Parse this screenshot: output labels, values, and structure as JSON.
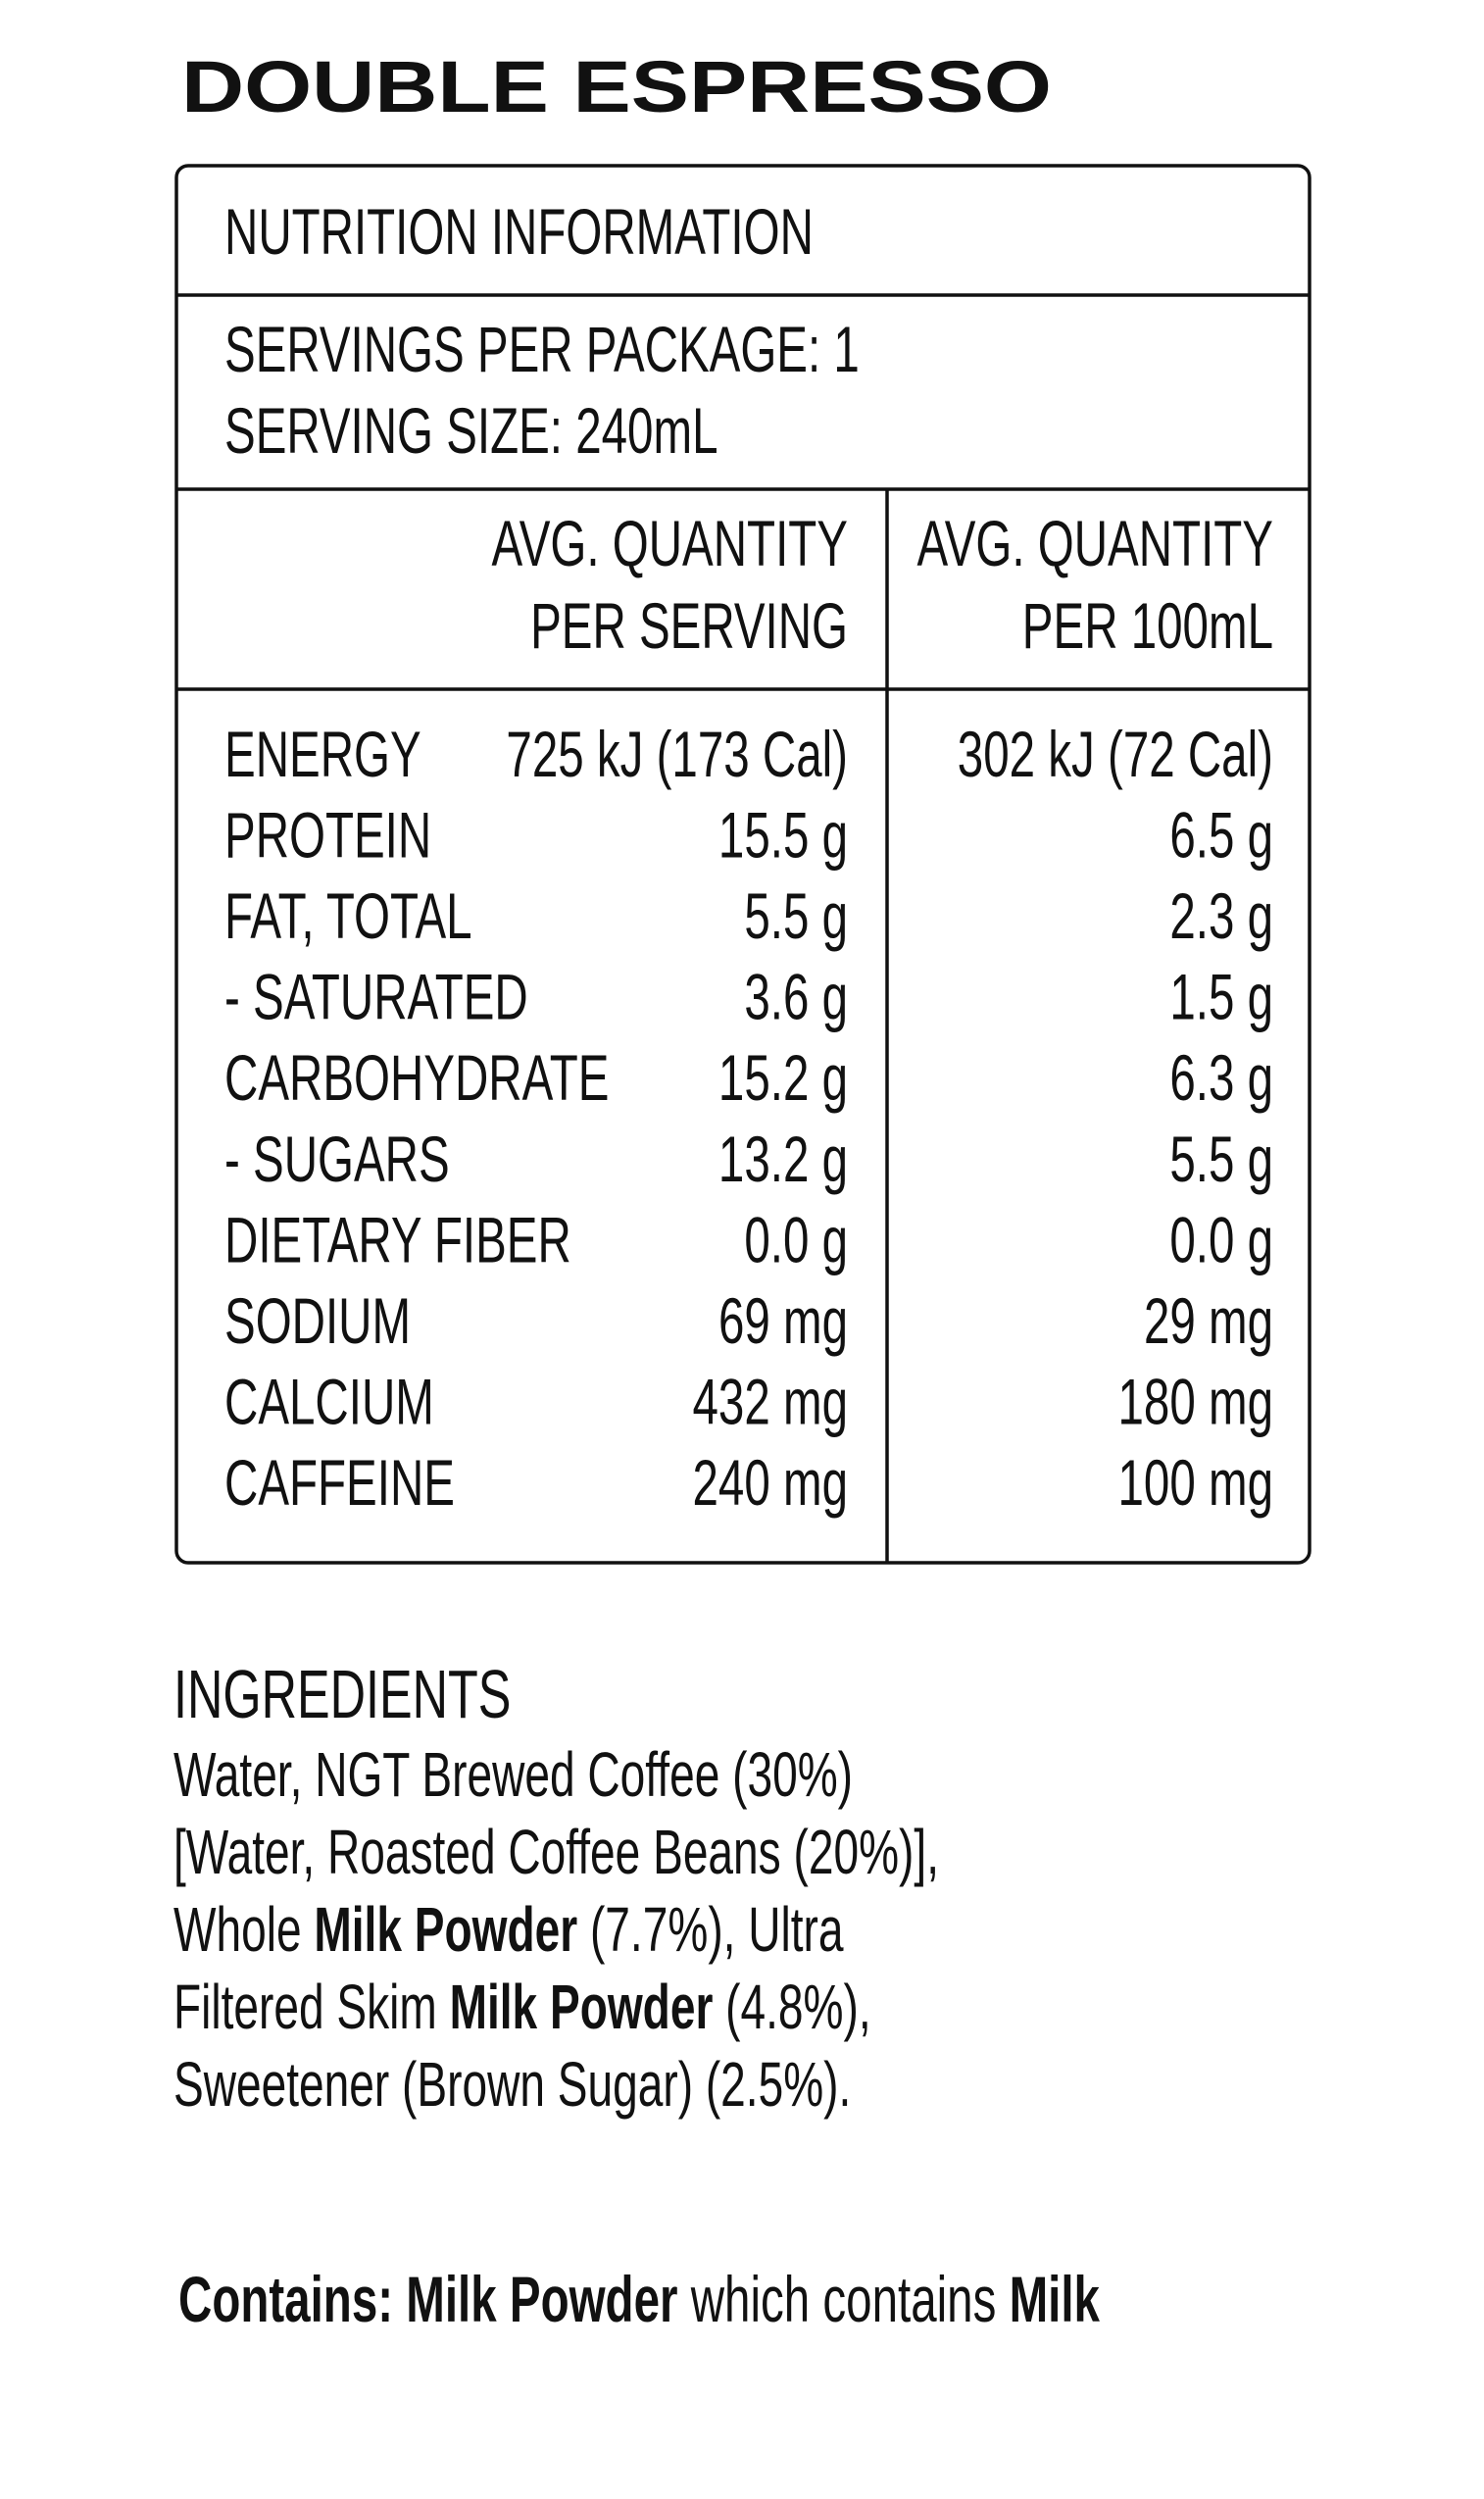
{
  "title": "DOUBLE ESPRESSO",
  "nutrition_panel": {
    "heading": "NUTRITION INFORMATION",
    "servings_per_package": "SERVINGS PER PACKAGE: 1",
    "serving_size": "SERVING SIZE: 240mL",
    "column_headers": [
      [
        "AVG. QUANTITY",
        "PER SERVING"
      ],
      [
        "AVG. QUANTITY",
        "PER 100mL"
      ]
    ],
    "rows": [
      [
        "ENERGY",
        "725 kJ (173 Cal)",
        "302 kJ (72 Cal)"
      ],
      [
        "PROTEIN",
        "15.5 g",
        "6.5 g"
      ],
      [
        "FAT, TOTAL",
        "5.5 g",
        "2.3 g"
      ],
      [
        "- SATURATED",
        "3.6 g",
        "1.5 g"
      ],
      [
        "CARBOHYDRATE",
        "15.2 g",
        "6.3 g"
      ],
      [
        "- SUGARS",
        "13.2 g",
        "5.5 g"
      ],
      [
        "DIETARY FIBER",
        "0.0 g",
        "0.0 g"
      ],
      [
        "SODIUM",
        "69 mg",
        "29 mg"
      ],
      [
        "CALCIUM",
        "432 mg",
        "180 mg"
      ],
      [
        "CAFFEINE",
        "240 mg",
        "100 mg"
      ]
    ]
  },
  "ingredients": {
    "heading": "INGREDIENTS",
    "lines": [
      [
        {
          "text": "Water, NGT Brewed Coffee (30%)",
          "bold": false
        }
      ],
      [
        {
          "text": "[Water, Roasted Coffee Beans (20%)],",
          "bold": false
        }
      ],
      [
        {
          "text": "Whole ",
          "bold": false
        },
        {
          "text": "Milk Powder",
          "bold": true
        },
        {
          "text": " (7.7%), Ultra",
          "bold": false
        }
      ],
      [
        {
          "text": "Filtered Skim ",
          "bold": false
        },
        {
          "text": "Milk Powder",
          "bold": true
        },
        {
          "text": " (4.8%),",
          "bold": false
        }
      ],
      [
        {
          "text": "Sweetener (Brown Sugar) (2.5%).",
          "bold": false
        }
      ]
    ]
  },
  "allergen_statement": [
    {
      "text": "Contains: Milk Powder",
      "bold": true
    },
    {
      "text": " which contains ",
      "bold": false
    },
    {
      "text": "Milk",
      "bold": true
    }
  ]
}
